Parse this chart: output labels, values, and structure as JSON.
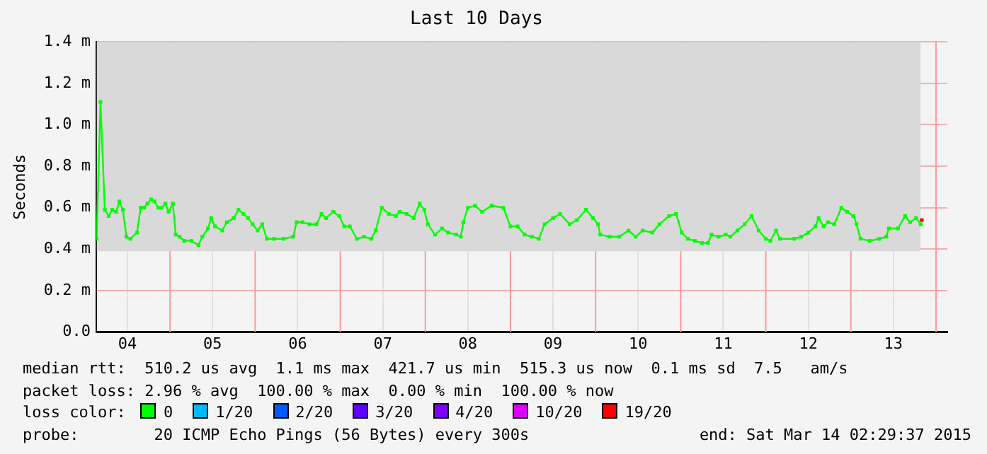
{
  "chart_data": {
    "type": "line",
    "title": "Last 10 Days",
    "ylabel": "Seconds",
    "legend_title": "loss color:",
    "legend": "bottom",
    "grid": true,
    "marker": "square",
    "line_style": "solid",
    "xlim": [
      "2015-03-04T03:12",
      "2015-03-14T03:12"
    ],
    "xticks": [
      {
        "value": "2015-03-04T12:00",
        "label": "04"
      },
      {
        "value": "2015-03-05T12:00",
        "label": "05"
      },
      {
        "value": "2015-03-06T12:00",
        "label": "06"
      },
      {
        "value": "2015-03-07T12:00",
        "label": "07"
      },
      {
        "value": "2015-03-08T12:00",
        "label": "08"
      },
      {
        "value": "2015-03-09T12:00",
        "label": "09"
      },
      {
        "value": "2015-03-10T12:00",
        "label": "10"
      },
      {
        "value": "2015-03-11T12:00",
        "label": "11"
      },
      {
        "value": "2015-03-12T12:00",
        "label": "12"
      },
      {
        "value": "2015-03-13T12:00",
        "label": "13"
      }
    ],
    "ylim": [
      0,
      1.4
    ],
    "yticks": [
      {
        "value": 0,
        "label": "0.0"
      },
      {
        "value": 0.2,
        "label": "0.2 m"
      },
      {
        "value": 0.4,
        "label": "0.4 m"
      },
      {
        "value": 0.6,
        "label": "0.6 m"
      },
      {
        "value": 0.8,
        "label": "0.8 m"
      },
      {
        "value": 1.0,
        "label": "1.0 m"
      },
      {
        "value": 1.2,
        "label": "1.2 m"
      },
      {
        "value": 1.4,
        "label": "1.4 m"
      }
    ],
    "x": [
      "2015-03-04T03:18",
      "2015-03-04T04:24",
      "2015-03-04T05:36",
      "2015-03-04T06:42",
      "2015-03-04T07:42",
      "2015-03-04T08:48",
      "2015-03-04T09:42",
      "2015-03-04T10:42",
      "2015-03-04T11:42",
      "2015-03-04T12:48",
      "2015-03-04T14:42",
      "2015-03-04T15:42",
      "2015-03-04T16:42",
      "2015-03-04T17:36",
      "2015-03-04T18:42",
      "2015-03-04T19:36",
      "2015-03-04T20:42",
      "2015-03-04T21:36",
      "2015-03-04T22:42",
      "2015-03-04T23:36",
      "2015-03-05T00:48",
      "2015-03-05T01:36",
      "2015-03-05T02:42",
      "2015-03-05T04:00",
      "2015-03-05T06:00",
      "2015-03-05T08:00",
      "2015-03-05T09:06",
      "2015-03-05T10:42",
      "2015-03-05T11:36",
      "2015-03-05T12:42",
      "2015-03-05T14:42",
      "2015-03-05T16:00",
      "2015-03-05T18:00",
      "2015-03-05T19:18",
      "2015-03-05T20:42",
      "2015-03-05T22:00",
      "2015-03-05T23:18",
      "2015-03-06T00:42",
      "2015-03-06T02:00",
      "2015-03-06T03:18",
      "2015-03-06T05:18",
      "2015-03-06T08:00",
      "2015-03-06T10:42",
      "2015-03-06T11:42",
      "2015-03-06T13:18",
      "2015-03-06T15:18",
      "2015-03-06T17:18",
      "2015-03-06T18:42",
      "2015-03-06T20:00",
      "2015-03-06T22:00",
      "2015-03-06T23:42",
      "2015-03-07T01:06",
      "2015-03-07T02:42",
      "2015-03-07T04:42",
      "2015-03-07T06:42",
      "2015-03-07T08:42",
      "2015-03-07T10:00",
      "2015-03-07T11:42",
      "2015-03-07T13:42",
      "2015-03-07T15:42",
      "2015-03-07T16:42",
      "2015-03-07T18:42",
      "2015-03-07T20:42",
      "2015-03-07T22:24",
      "2015-03-07T23:42",
      "2015-03-08T00:42",
      "2015-03-08T02:42",
      "2015-03-08T04:42",
      "2015-03-08T06:24",
      "2015-03-08T08:42",
      "2015-03-08T10:00",
      "2015-03-08T10:42",
      "2015-03-08T12:00",
      "2015-03-08T14:00",
      "2015-03-08T16:00",
      "2015-03-08T18:42",
      "2015-03-08T22:00",
      "2015-03-09T00:00",
      "2015-03-09T02:00",
      "2015-03-09T04:00",
      "2015-03-09T06:00",
      "2015-03-09T08:00",
      "2015-03-09T09:36",
      "2015-03-09T12:00",
      "2015-03-09T14:00",
      "2015-03-09T16:42",
      "2015-03-09T18:42",
      "2015-03-09T21:18",
      "2015-03-09T23:18",
      "2015-03-10T00:42",
      "2015-03-10T01:18",
      "2015-03-10T04:00",
      "2015-03-10T06:42",
      "2015-03-10T09:18",
      "2015-03-10T11:18",
      "2015-03-10T13:18",
      "2015-03-10T16:00",
      "2015-03-10T18:00",
      "2015-03-10T20:42",
      "2015-03-10T22:42",
      "2015-03-11T00:18",
      "2015-03-11T02:00",
      "2015-03-11T04:00",
      "2015-03-11T06:00",
      "2015-03-11T07:42",
      "2015-03-11T08:42",
      "2015-03-11T10:42",
      "2015-03-11T12:42",
      "2015-03-11T14:00",
      "2015-03-11T16:00",
      "2015-03-11T18:00",
      "2015-03-11T20:00",
      "2015-03-11T22:00",
      "2015-03-12T00:00",
      "2015-03-12T01:18",
      "2015-03-12T02:54",
      "2015-03-12T04:00",
      "2015-03-12T08:00",
      "2015-03-12T10:00",
      "2015-03-12T12:00",
      "2015-03-12T14:00",
      "2015-03-12T14:54",
      "2015-03-12T16:18",
      "2015-03-12T17:36",
      "2015-03-12T19:18",
      "2015-03-12T21:18",
      "2015-03-12T22:54",
      "2015-03-13T00:42",
      "2015-03-13T01:36",
      "2015-03-13T02:42",
      "2015-03-13T05:18",
      "2015-03-13T08:00",
      "2015-03-13T10:00",
      "2015-03-13T10:42",
      "2015-03-13T13:18",
      "2015-03-13T15:18",
      "2015-03-13T16:42",
      "2015-03-13T18:24",
      "2015-03-13T19:42"
    ],
    "series": [
      {
        "name": "0",
        "color": "#00ff00",
        "values": [
          0.45,
          1.11,
          0.59,
          0.56,
          0.59,
          0.58,
          0.63,
          0.59,
          0.46,
          0.45,
          0.48,
          0.6,
          0.6,
          0.62,
          0.64,
          0.63,
          0.6,
          0.6,
          0.62,
          0.58,
          0.62,
          0.47,
          0.46,
          0.44,
          0.44,
          0.42,
          0.46,
          0.5,
          0.55,
          0.51,
          0.49,
          0.53,
          0.55,
          0.59,
          0.57,
          0.55,
          0.52,
          0.49,
          0.52,
          0.45,
          0.45,
          0.45,
          0.46,
          0.53,
          0.53,
          0.52,
          0.52,
          0.57,
          0.55,
          0.58,
          0.56,
          0.51,
          0.51,
          0.45,
          0.46,
          0.45,
          0.49,
          0.6,
          0.57,
          0.56,
          0.58,
          0.57,
          0.55,
          0.62,
          0.59,
          0.52,
          0.47,
          0.5,
          0.48,
          0.47,
          0.46,
          0.53,
          0.6,
          0.61,
          0.58,
          0.61,
          0.6,
          0.51,
          0.51,
          0.47,
          0.46,
          0.45,
          0.52,
          0.55,
          0.57,
          0.52,
          0.54,
          0.59,
          0.55,
          0.52,
          0.47,
          0.46,
          0.46,
          0.49,
          0.46,
          0.49,
          0.48,
          0.52,
          0.56,
          0.57,
          0.48,
          0.45,
          0.44,
          0.43,
          0.43,
          0.47,
          0.46,
          0.47,
          0.46,
          0.49,
          0.52,
          0.56,
          0.49,
          0.45,
          0.44,
          0.49,
          0.45,
          0.45,
          0.46,
          0.48,
          0.51,
          0.55,
          0.51,
          0.53,
          0.52,
          0.6,
          0.58,
          0.56,
          0.52,
          0.45,
          0.44,
          0.45,
          0.46,
          0.5,
          0.5,
          0.56,
          0.53,
          0.55,
          0.52
        ],
        "lower": [
          0.39,
          0.39,
          0.39,
          0.39,
          0.39,
          0.39,
          0.39,
          0.39,
          0.39,
          0.39,
          0.39,
          0.39,
          0.39,
          0.39,
          0.39,
          0.39,
          0.39,
          0.39,
          0.39,
          0.39,
          0.39,
          0.39,
          0.39,
          0.39,
          0.39,
          0.39,
          0.39,
          0.39,
          0.39,
          0.39,
          0.39,
          0.39,
          0.39,
          0.39,
          0.39,
          0.39,
          0.39,
          0.39,
          0.39,
          0.39,
          0.39,
          0.39,
          0.39,
          0.39,
          0.39,
          0.39,
          0.39,
          0.39,
          0.39,
          0.39,
          0.39,
          0.39,
          0.39,
          0.39,
          0.39,
          0.39,
          0.39,
          0.39,
          0.39,
          0.39,
          0.39,
          0.39,
          0.39,
          0.39,
          0.39,
          0.39,
          0.39,
          0.39,
          0.39,
          0.39,
          0.39,
          0.39,
          0.39,
          0.39,
          0.39,
          0.39,
          0.39,
          0.39,
          0.39,
          0.39,
          0.39,
          0.39,
          0.39,
          0.39,
          0.39,
          0.39,
          0.39,
          0.39,
          0.39,
          0.39,
          0.39,
          0.39,
          0.39,
          0.39,
          0.39,
          0.39,
          0.39,
          0.39,
          0.39,
          0.39,
          0.39,
          0.39,
          0.39,
          0.39,
          0.39,
          0.39,
          0.39,
          0.39,
          0.39,
          0.39,
          0.39,
          0.39,
          0.39,
          0.39,
          0.39,
          0.39,
          0.39,
          0.39,
          0.39,
          0.39,
          0.39,
          0.39,
          0.39,
          0.39,
          0.39,
          0.39,
          0.39,
          0.39,
          0.39,
          0.39,
          0.39,
          0.39,
          0.39,
          0.39,
          0.39,
          0.39,
          0.39,
          0.39,
          0.39
        ],
        "upper": [
          1.4,
          1.4,
          1.4,
          1.4,
          1.4,
          1.4,
          1.4,
          1.4,
          1.4,
          1.4,
          1.4,
          1.4,
          1.4,
          1.4,
          1.4,
          1.4,
          1.4,
          1.4,
          1.4,
          1.4,
          1.4,
          1.4,
          1.4,
          1.4,
          1.4,
          1.4,
          1.4,
          1.4,
          1.4,
          1.4,
          1.4,
          1.4,
          1.4,
          1.4,
          1.4,
          1.4,
          1.4,
          1.4,
          1.4,
          1.4,
          1.4,
          1.4,
          1.4,
          1.4,
          1.4,
          1.4,
          1.4,
          1.4,
          1.4,
          1.4,
          1.4,
          1.4,
          1.4,
          1.4,
          1.4,
          1.4,
          1.4,
          1.4,
          1.4,
          1.4,
          1.4,
          1.4,
          1.4,
          1.4,
          1.4,
          1.4,
          1.4,
          1.4,
          1.4,
          1.4,
          1.4,
          1.4,
          1.4,
          1.4,
          1.4,
          1.4,
          1.4,
          1.4,
          1.4,
          1.4,
          1.4,
          1.4,
          1.4,
          1.4,
          1.4,
          1.4,
          1.4,
          1.4,
          1.4,
          1.4,
          1.4,
          1.4,
          1.4,
          1.4,
          1.4,
          1.4,
          1.4,
          1.4,
          1.4,
          1.4,
          1.4,
          1.4,
          1.4,
          1.4,
          1.4,
          1.4,
          1.4,
          1.4,
          1.4,
          1.4,
          1.4,
          1.4,
          1.4,
          1.4,
          1.4,
          1.4,
          1.4,
          1.4,
          1.4,
          1.4,
          1.4,
          1.4,
          1.4,
          1.4,
          1.4,
          1.4,
          1.4,
          1.4,
          1.4,
          1.4,
          1.4,
          1.4,
          1.4,
          1.4,
          1.4,
          1.4,
          1.4,
          1.4,
          1.4
        ]
      },
      {
        "name": "1/20",
        "color": "#00b8ff",
        "values": [
          null,
          null,
          null,
          null,
          null,
          null,
          null,
          null,
          null,
          null,
          null,
          null,
          null,
          null,
          null,
          null,
          null,
          null,
          null,
          null,
          null,
          null,
          null,
          null,
          null,
          null,
          null,
          null,
          null,
          null,
          null,
          null,
          null,
          null,
          null,
          null,
          null,
          null,
          null,
          null,
          null,
          null,
          null,
          null,
          null,
          null,
          null,
          null,
          null,
          null,
          null,
          null,
          null,
          null,
          null,
          null,
          null,
          null,
          null,
          null,
          null,
          null,
          null,
          null,
          null,
          null,
          null,
          null,
          null,
          null,
          null,
          null,
          null,
          null,
          null,
          null,
          null,
          null,
          null,
          null,
          null,
          null,
          null,
          null,
          null,
          null,
          null,
          null,
          null,
          null,
          null,
          null,
          null,
          null,
          null,
          null,
          null,
          null,
          null,
          null,
          null,
          null,
          null,
          null,
          null,
          null,
          null,
          null,
          null,
          null,
          null,
          null,
          null,
          null,
          null,
          null,
          null,
          null,
          null,
          null,
          null,
          null,
          null,
          null,
          null,
          null,
          null,
          null,
          null,
          null,
          null,
          null,
          null,
          null,
          null,
          null,
          null,
          null,
          null
        ]
      },
      {
        "name": "2/20",
        "color": "#0059ff",
        "values": [
          null,
          null,
          null,
          null,
          null,
          null,
          null,
          null,
          null,
          null,
          null,
          null,
          null,
          null,
          null,
          null,
          null,
          null,
          null,
          null,
          null,
          null,
          null,
          null,
          null,
          null,
          null,
          null,
          null,
          null,
          null,
          null,
          null,
          null,
          null,
          null,
          null,
          null,
          null,
          null,
          null,
          null,
          null,
          null,
          null,
          null,
          null,
          null,
          null,
          null,
          null,
          null,
          null,
          null,
          null,
          null,
          null,
          null,
          null,
          null,
          null,
          null,
          null,
          null,
          null,
          null,
          null,
          null,
          null,
          null,
          null,
          null,
          null,
          null,
          null,
          null,
          null,
          null,
          null,
          null,
          null,
          null,
          null,
          null,
          null,
          null,
          null,
          null,
          null,
          null,
          null,
          null,
          null,
          null,
          null,
          null,
          null,
          null,
          null,
          null,
          null,
          null,
          null,
          null,
          null,
          null,
          null,
          null,
          null,
          null,
          null,
          null,
          null,
          null,
          null,
          null,
          null,
          null,
          null,
          null,
          null,
          null,
          null,
          null,
          null,
          null,
          null,
          null,
          null,
          null,
          null,
          null,
          null,
          null,
          null,
          null,
          null,
          null,
          null
        ]
      },
      {
        "name": "3/20",
        "color": "#5e00ff",
        "values": [
          null,
          null,
          null,
          null,
          null,
          null,
          null,
          null,
          null,
          null,
          null,
          null,
          null,
          null,
          null,
          null,
          null,
          null,
          null,
          null,
          null,
          null,
          null,
          null,
          null,
          null,
          null,
          null,
          null,
          null,
          null,
          null,
          null,
          null,
          null,
          null,
          null,
          null,
          null,
          null,
          null,
          null,
          null,
          null,
          null,
          null,
          null,
          null,
          null,
          null,
          null,
          null,
          null,
          null,
          null,
          null,
          null,
          null,
          null,
          null,
          null,
          null,
          null,
          null,
          null,
          null,
          null,
          null,
          null,
          null,
          null,
          null,
          null,
          null,
          null,
          null,
          null,
          null,
          null,
          null,
          null,
          null,
          null,
          null,
          null,
          null,
          null,
          null,
          null,
          null,
          null,
          null,
          null,
          null,
          null,
          null,
          null,
          null,
          null,
          null,
          null,
          null,
          null,
          null,
          null,
          null,
          null,
          null,
          null,
          null,
          null,
          null,
          null,
          null,
          null,
          null,
          null,
          null,
          null,
          null,
          null,
          null,
          null,
          null,
          null,
          null,
          null,
          null,
          null,
          null,
          null,
          null,
          null,
          null,
          null,
          null,
          null,
          null,
          null
        ]
      },
      {
        "name": "4/20",
        "color": "#7e00ff",
        "values": [
          null,
          null,
          null,
          null,
          null,
          null,
          null,
          null,
          null,
          null,
          null,
          null,
          null,
          null,
          null,
          null,
          null,
          null,
          null,
          null,
          null,
          null,
          null,
          null,
          null,
          null,
          null,
          null,
          null,
          null,
          null,
          null,
          null,
          null,
          null,
          null,
          null,
          null,
          null,
          null,
          null,
          null,
          null,
          null,
          null,
          null,
          null,
          null,
          null,
          null,
          null,
          null,
          null,
          null,
          null,
          null,
          null,
          null,
          null,
          null,
          null,
          null,
          null,
          null,
          null,
          null,
          null,
          null,
          null,
          null,
          null,
          null,
          null,
          null,
          null,
          null,
          null,
          null,
          null,
          null,
          null,
          null,
          null,
          null,
          null,
          null,
          null,
          null,
          null,
          null,
          null,
          null,
          null,
          null,
          null,
          null,
          null,
          null,
          null,
          null,
          null,
          null,
          null,
          null,
          null,
          null,
          null,
          null,
          null,
          null,
          null,
          null,
          null,
          null,
          null,
          null,
          null,
          null,
          null,
          null,
          null,
          null,
          null,
          null,
          null,
          null,
          null,
          null,
          null,
          null,
          null,
          null,
          null,
          null,
          null,
          null,
          null,
          null,
          null
        ]
      },
      {
        "name": "10/20",
        "color": "#dd00ff",
        "values": [
          null,
          null,
          null,
          null,
          null,
          null,
          null,
          null,
          null,
          null,
          null,
          null,
          null,
          null,
          null,
          null,
          null,
          null,
          null,
          null,
          null,
          null,
          null,
          null,
          null,
          null,
          null,
          null,
          null,
          null,
          null,
          null,
          null,
          null,
          null,
          null,
          null,
          null,
          null,
          null,
          null,
          null,
          null,
          null,
          null,
          null,
          null,
          null,
          null,
          null,
          null,
          null,
          null,
          null,
          null,
          null,
          null,
          null,
          null,
          null,
          null,
          null,
          null,
          null,
          null,
          null,
          null,
          null,
          null,
          null,
          null,
          null,
          null,
          null,
          null,
          null,
          null,
          null,
          null,
          null,
          null,
          null,
          null,
          null,
          null,
          null,
          null,
          null,
          null,
          null,
          null,
          null,
          null,
          null,
          null,
          null,
          null,
          null,
          null,
          null,
          null,
          null,
          null,
          null,
          null,
          null,
          null,
          null,
          null,
          null,
          null,
          null,
          null,
          null,
          null,
          null,
          null,
          null,
          null,
          null,
          null,
          null,
          null,
          null,
          null,
          null,
          null,
          null,
          null,
          null,
          null,
          null,
          null,
          null,
          null,
          null,
          null,
          null,
          null
        ]
      },
      {
        "name": "19/20",
        "color": "#ff0000",
        "x": [
          "2015-03-13T20:00"
        ],
        "values": [
          0.54
        ]
      }
    ],
    "ref_lines": [
      {
        "axis": "x",
        "value": "2015-03-05T00:00",
        "color": "#ff9a9a"
      },
      {
        "axis": "x",
        "value": "2015-03-06T00:00",
        "color": "#ff9a9a"
      },
      {
        "axis": "x",
        "value": "2015-03-07T00:00",
        "color": "#ff9a9a"
      },
      {
        "axis": "x",
        "value": "2015-03-08T00:00",
        "color": "#ff9a9a"
      },
      {
        "axis": "x",
        "value": "2015-03-09T00:00",
        "color": "#ff9a9a"
      },
      {
        "axis": "x",
        "value": "2015-03-10T00:00",
        "color": "#ff9a9a"
      },
      {
        "axis": "x",
        "value": "2015-03-11T00:00",
        "color": "#ff9a9a"
      },
      {
        "axis": "x",
        "value": "2015-03-12T00:00",
        "color": "#ff9a9a"
      },
      {
        "axis": "x",
        "value": "2015-03-13T00:00",
        "color": "#ff9a9a"
      },
      {
        "axis": "x",
        "value": "2015-03-14T00:00",
        "color": "#ff9a9a"
      }
    ],
    "annotations": [
      "median rtt:  510.2 us avg  1.1 ms max  421.7 us min  515.3 us now  0.1 ms sd  7.5   am/s",
      "packet loss: 2.96 % avg  100.00 % max  0.00 % min  100.00 % now",
      "probe:        20 ICMP Echo Pings (56 Bytes) every 300s",
      "end: Sat Mar 14 02:29:37 2015"
    ]
  }
}
